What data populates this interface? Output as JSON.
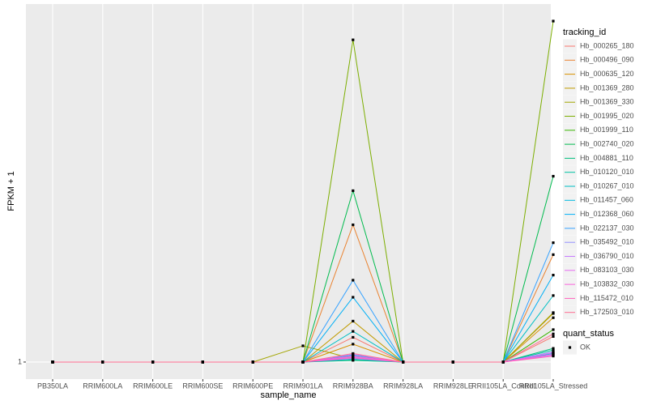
{
  "chart_data": {
    "type": "line",
    "x_label": "sample_name",
    "y_label": "FPKM + 1",
    "legend_title": "tracking_id",
    "shape_legend": {
      "title": "quant_status",
      "labels": [
        "OK"
      ]
    },
    "categories": [
      "PB350LA",
      "RRIM600LA",
      "RRIM600LE",
      "RRIM600SE",
      "RRIM600PE",
      "RRIM901LA",
      "RRIM928BA",
      "RRIM928LA",
      "RRIM928LE",
      "RRII105LA_Control",
      "RRII105LA_Stressed"
    ],
    "ylim": [
      0,
      22
    ],
    "yticks": [
      1
    ],
    "grid": true,
    "series": [
      {
        "name": "Hb_000265_180",
        "color": "#F8766D",
        "values": [
          1,
          1,
          1,
          1,
          1,
          1,
          2.45,
          1,
          1,
          1,
          2.5
        ]
      },
      {
        "name": "Hb_000496_090",
        "color": "#EA8331",
        "values": [
          1,
          1,
          1,
          1,
          1,
          1,
          9.05,
          1,
          1,
          1,
          7.3
        ]
      },
      {
        "name": "Hb_000635_120",
        "color": "#D89000",
        "values": [
          1,
          1,
          1,
          1,
          1,
          1,
          2.05,
          1,
          1,
          1,
          3.6
        ]
      },
      {
        "name": "Hb_001369_280",
        "color": "#C09B00",
        "values": [
          1,
          1,
          1,
          1,
          1,
          1,
          3.4,
          1,
          1,
          1,
          3.85
        ]
      },
      {
        "name": "Hb_001369_330",
        "color": "#A3A500",
        "values": [
          1,
          1,
          1,
          1,
          1,
          1.95,
          1.2,
          1,
          1,
          1,
          3.9
        ]
      },
      {
        "name": "Hb_001995_020",
        "color": "#7CAE00",
        "values": [
          1,
          1,
          1,
          1,
          1,
          1,
          19.9,
          1,
          1,
          1,
          21
        ]
      },
      {
        "name": "Hb_001999_110",
        "color": "#39B600",
        "values": [
          1,
          1,
          1,
          1,
          1,
          1,
          1.3,
          1,
          1,
          1,
          2.9
        ]
      },
      {
        "name": "Hb_002740_020",
        "color": "#00BB4E",
        "values": [
          1,
          1,
          1,
          1,
          1,
          1,
          11.05,
          1,
          1,
          1,
          11.9
        ]
      },
      {
        "name": "Hb_004881_110",
        "color": "#00BF7D",
        "values": [
          1,
          1,
          1,
          1,
          1,
          1,
          1.1,
          1,
          1,
          1,
          1.8
        ]
      },
      {
        "name": "Hb_010120_010",
        "color": "#00C1A3",
        "values": [
          1,
          1,
          1,
          1,
          1,
          1,
          1.15,
          1,
          1,
          1,
          1.7
        ]
      },
      {
        "name": "Hb_010267_010",
        "color": "#00BFC4",
        "values": [
          1,
          1,
          1,
          1,
          1,
          1,
          2.8,
          1,
          1,
          1,
          4.9
        ]
      },
      {
        "name": "Hb_011457_060",
        "color": "#00BAE0",
        "values": [
          1,
          1,
          1,
          1,
          1,
          1,
          1.4,
          1,
          1,
          1,
          1.5
        ]
      },
      {
        "name": "Hb_012368_060",
        "color": "#00B0F6",
        "values": [
          1,
          1,
          1,
          1,
          1,
          1,
          4.8,
          1,
          1,
          1,
          6.1
        ]
      },
      {
        "name": "Hb_022137_030",
        "color": "#35A2FF",
        "values": [
          1,
          1,
          1,
          1,
          1,
          1,
          5.8,
          1,
          1,
          1,
          8
        ]
      },
      {
        "name": "Hb_035492_010",
        "color": "#9590FF",
        "values": [
          1,
          1,
          1,
          1,
          1,
          1,
          1.2,
          1,
          1,
          1,
          1.6
        ]
      },
      {
        "name": "Hb_036790_010",
        "color": "#C77CFF",
        "values": [
          1,
          1,
          1,
          1,
          1,
          1,
          1.45,
          1,
          1,
          1,
          1.4
        ]
      },
      {
        "name": "Hb_083103_030",
        "color": "#E76BF3",
        "values": [
          1,
          1,
          1,
          1,
          1,
          1,
          1.3,
          1,
          1,
          1,
          1.55
        ]
      },
      {
        "name": "Hb_103832_030",
        "color": "#FA62DB",
        "values": [
          1,
          1,
          1,
          1,
          1,
          1,
          1.35,
          1,
          1,
          1,
          1.45
        ]
      },
      {
        "name": "Hb_115472_010",
        "color": "#FF62BC",
        "values": [
          1,
          1,
          1,
          1,
          1,
          1,
          1.25,
          1,
          1,
          1,
          1.35
        ]
      },
      {
        "name": "Hb_172503_010",
        "color": "#FF6C91",
        "values": [
          1,
          1,
          1,
          1,
          1,
          1,
          1.5,
          1,
          1,
          1,
          2.65
        ]
      }
    ]
  }
}
